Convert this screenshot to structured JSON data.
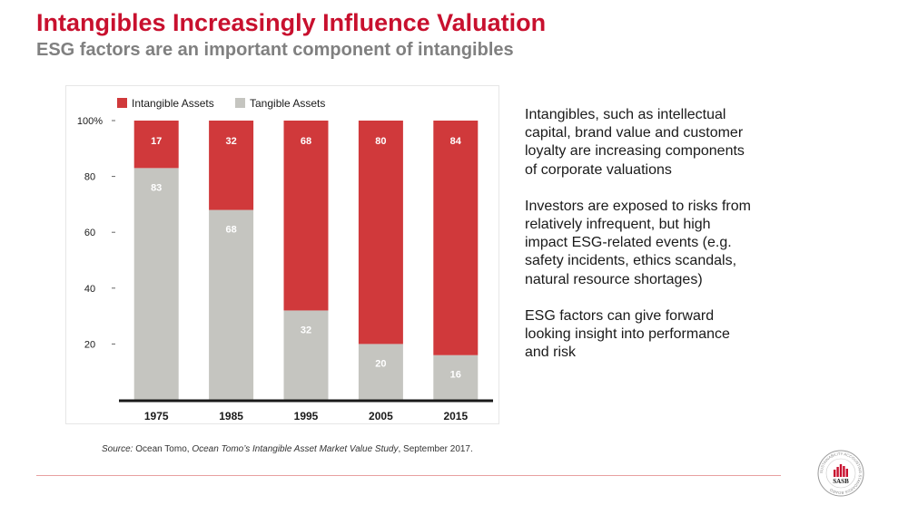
{
  "slide": {
    "title": "Intangibles Increasingly Influence Valuation",
    "subtitle": "ESG factors are an important component of intangibles"
  },
  "bullets": [
    "Intangibles, such as intellectual capital, brand value and customer loyalty are increasing components of corporate valuations",
    "Investors are exposed to risks from relatively infrequent, but high impact ESG-related events (e.g. safety incidents, ethics scandals, natural resource shortages)",
    "ESG factors can give forward looking insight into performance and risk"
  ],
  "source": {
    "prefix": "Source:",
    "org": " Ocean Tomo, ",
    "study": "Ocean Tomo’s Intangible Asset Market Value Study",
    "date": ", September 2017."
  },
  "logo": {
    "text": "SASB",
    "ring_text": "SUSTAINABILITY ACCOUNTING STANDARDS BOARD",
    "color": "#c8102e"
  },
  "chart_data": {
    "type": "bar",
    "stacked": true,
    "categories": [
      "1975",
      "1985",
      "1995",
      "2005",
      "2015"
    ],
    "series": [
      {
        "name": "Intangible Assets",
        "color": "#d0393b",
        "label_color": "#ffffff",
        "values": [
          17,
          32,
          68,
          80,
          84
        ]
      },
      {
        "name": "Tangible Assets",
        "color": "#c5c5c0",
        "label_color": "#ffffff",
        "values": [
          83,
          68,
          32,
          20,
          16
        ]
      }
    ],
    "y_ticks": [
      "100%",
      "80",
      "60",
      "40",
      "20"
    ],
    "y_tick_values": [
      100,
      80,
      60,
      40,
      20
    ],
    "ylim": [
      0,
      100
    ],
    "legend_position": "top-left",
    "grid": false
  }
}
